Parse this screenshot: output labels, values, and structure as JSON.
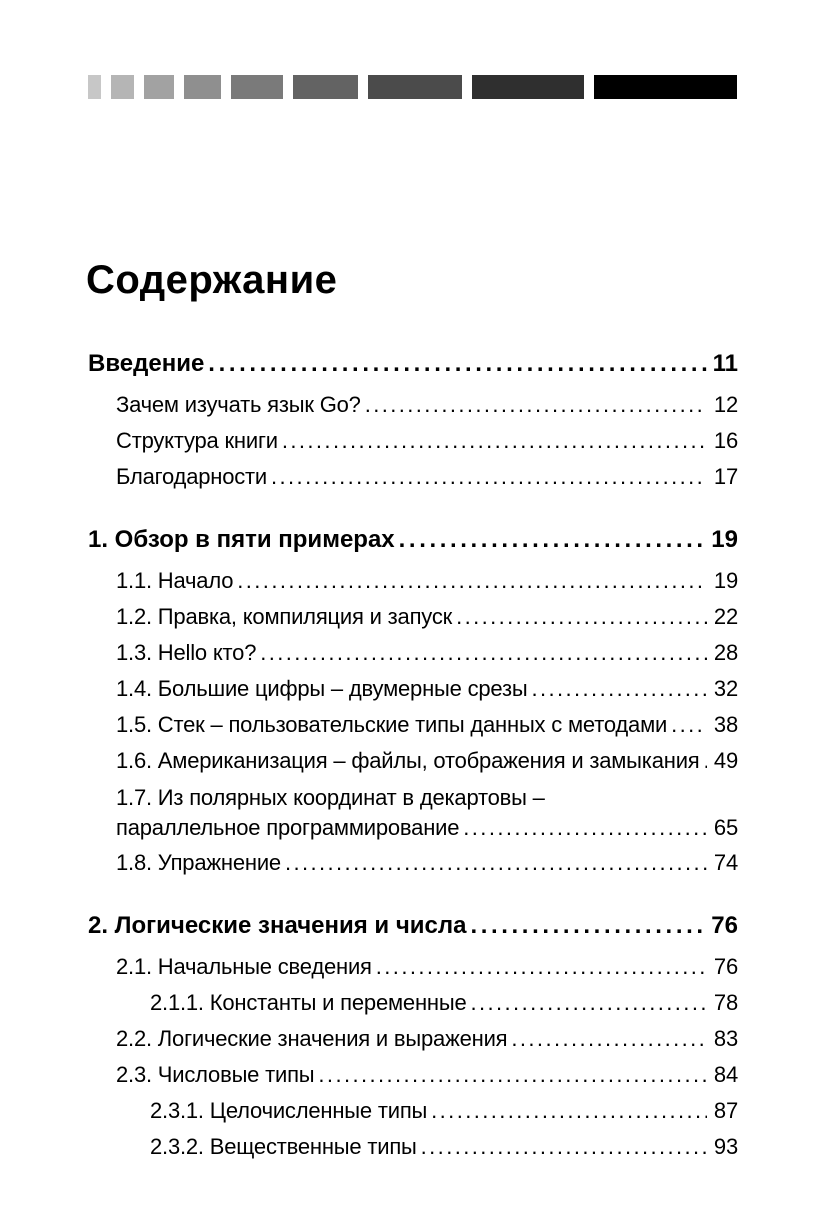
{
  "page_title": "Содержание",
  "gradient_strip": {
    "blocks": [
      {
        "name": "gray-step-1",
        "color": "#c7c7c7",
        "width": 13
      },
      {
        "name": "gray-step-2",
        "color": "#b5b5b5",
        "width": 23
      },
      {
        "name": "gray-step-3",
        "color": "#a2a2a2",
        "width": 30
      },
      {
        "name": "gray-step-4",
        "color": "#8f8f8f",
        "width": 37
      },
      {
        "name": "gray-step-5",
        "color": "#7a7a7a",
        "width": 52
      },
      {
        "name": "gray-step-6",
        "color": "#636363",
        "width": 65
      },
      {
        "name": "gray-step-7",
        "color": "#4b4b4b",
        "width": 94
      },
      {
        "name": "gray-step-8",
        "color": "#2f2f2f",
        "width": 112
      },
      {
        "name": "gray-step-9",
        "color": "#000000",
        "width": 143
      }
    ]
  },
  "toc": {
    "entries": [
      {
        "label": "Введение",
        "page": "11",
        "type": "chapter"
      },
      {
        "label": "Зачем изучать язык Go?",
        "page": "12",
        "type": "section"
      },
      {
        "label": "Структура книги",
        "page": "16",
        "type": "section"
      },
      {
        "label": "Благодарности",
        "page": "17",
        "type": "section"
      },
      {
        "label": "1. Обзор в пяти примерах",
        "page": "19",
        "type": "chapter"
      },
      {
        "label": "1.1. Начало",
        "page": "19",
        "type": "section"
      },
      {
        "label": "1.2. Правка, компиляция и запуск",
        "page": "22",
        "type": "section"
      },
      {
        "label": "1.3. Hello кто?",
        "page": "28",
        "type": "section"
      },
      {
        "label": "1.4. Большие цифры – двумерные срезы",
        "page": "32",
        "type": "section"
      },
      {
        "label": "1.5. Стек – пользовательские типы данных с методами",
        "page": "38",
        "type": "section"
      },
      {
        "label": "1.6. Американизация – файлы, отображения и замыкания",
        "page": "49",
        "type": "section"
      },
      {
        "label": "1.7. Из полярных координат в декартовы –",
        "page": "",
        "type": "section-wrap-first"
      },
      {
        "label": "параллельное программирование",
        "page": "65",
        "type": "section-continuation"
      },
      {
        "label": "1.8. Упражнение",
        "page": "74",
        "type": "section"
      },
      {
        "label": "2. Логические значения и числа",
        "page": "76",
        "type": "chapter"
      },
      {
        "label": "2.1. Начальные сведения",
        "page": "76",
        "type": "section"
      },
      {
        "label": "2.1.1. Константы и переменные",
        "page": "78",
        "type": "subsection"
      },
      {
        "label": "2.2. Логические значения и выражения",
        "page": "83",
        "type": "section"
      },
      {
        "label": "2.3. Числовые типы",
        "page": "84",
        "type": "section"
      },
      {
        "label": "2.3.1. Целочисленные типы",
        "page": "87",
        "type": "subsection"
      },
      {
        "label": "2.3.2. Вещественные типы",
        "page": "93",
        "type": "subsection"
      }
    ]
  }
}
